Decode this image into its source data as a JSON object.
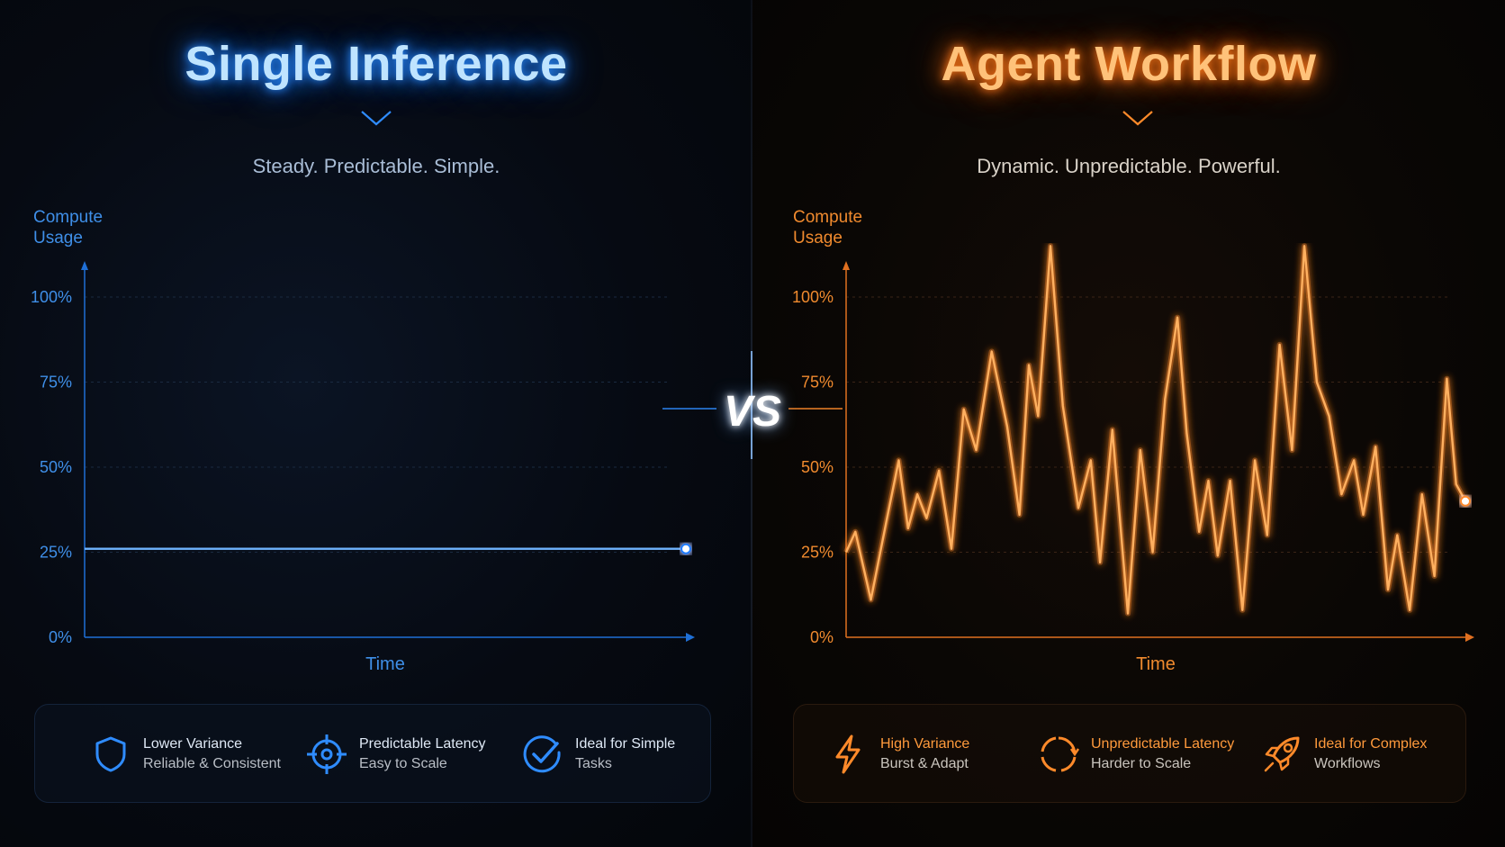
{
  "vs_label": "VS",
  "colors": {
    "blue": "#1f7cff",
    "orange": "#ff8a2a",
    "background": "#05070b"
  },
  "left": {
    "title": "Single Inference",
    "subtitle": "Steady. Predictable. Simple.",
    "ylabel_line1": "Compute",
    "ylabel_line2": "Usage",
    "xlabel": "Time",
    "features": [
      {
        "icon": "shield-icon",
        "title": "Lower Variance",
        "subtitle": "Reliable & Consistent"
      },
      {
        "icon": "target-icon",
        "title": "Predictable Latency",
        "subtitle": "Easy to Scale"
      },
      {
        "icon": "check-circle-icon",
        "title": "Ideal for Simple",
        "subtitle": "Tasks"
      }
    ]
  },
  "right": {
    "title": "Agent Workflow",
    "subtitle": "Dynamic. Unpredictable. Powerful.",
    "ylabel_line1": "Compute",
    "ylabel_line2": "Usage",
    "xlabel": "Time",
    "features": [
      {
        "icon": "lightning-icon",
        "title": "High Variance",
        "subtitle": "Burst & Adapt"
      },
      {
        "icon": "refresh-circle-icon",
        "title": "Unpredictable Latency",
        "subtitle": "Harder to Scale"
      },
      {
        "icon": "rocket-icon",
        "title": "Ideal for Complex",
        "subtitle": "Workflows"
      }
    ]
  },
  "chart_data": [
    {
      "type": "line",
      "title": "Single Inference",
      "xlabel": "Time",
      "ylabel": "Compute Usage",
      "yticks": [
        "0%",
        "25%",
        "50%",
        "75%",
        "100%"
      ],
      "ylim": [
        0,
        100
      ],
      "xlim": [
        0,
        100
      ],
      "grid": true,
      "series": [
        {
          "x": [
            0,
            100
          ],
          "y": [
            26,
            26
          ],
          "color": "#1f7cff"
        }
      ]
    },
    {
      "type": "line",
      "title": "Agent Workflow",
      "xlabel": "Time",
      "ylabel": "Compute Usage",
      "yticks": [
        "0%",
        "25%",
        "50%",
        "75%",
        "100%"
      ],
      "ylim": [
        0,
        100
      ],
      "xlim": [
        0,
        100
      ],
      "grid": true,
      "series": [
        {
          "color": "#ff8a2a",
          "x": [
            0,
            1.5,
            4,
            6.5,
            8.5,
            10,
            11.5,
            13,
            15,
            17,
            19,
            21,
            23.5,
            26,
            28,
            29.5,
            31,
            33,
            35,
            37.5,
            39.5,
            41,
            43,
            45.5,
            47.5,
            49.5,
            51.5,
            53.5,
            55,
            57,
            58.5,
            60,
            62,
            64,
            66,
            68,
            70,
            72,
            74,
            76,
            78,
            80,
            82,
            83.5,
            85.5,
            87.5,
            89,
            91,
            93,
            95,
            97,
            98.5,
            100
          ],
          "y": [
            25,
            31,
            11,
            34,
            52,
            32,
            42,
            35,
            49,
            26,
            67,
            55,
            84,
            62,
            36,
            80,
            65,
            115,
            68,
            38,
            52,
            22,
            61,
            7,
            55,
            25,
            70,
            94,
            60,
            31,
            46,
            24,
            46,
            8,
            52,
            30,
            86,
            55,
            115,
            75,
            65,
            42,
            52,
            36,
            56,
            14,
            30,
            8,
            42,
            18,
            76,
            45,
            40
          ]
        }
      ]
    }
  ]
}
